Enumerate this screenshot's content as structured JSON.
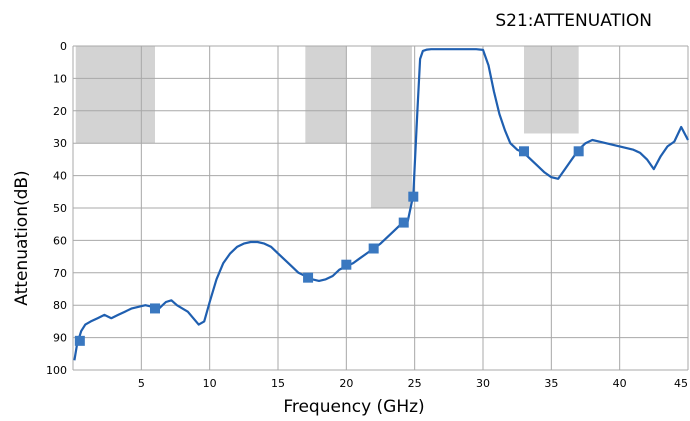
{
  "chart_data": {
    "type": "line",
    "title": "S21:ATTENUATION",
    "xlabel": "Frequency (GHz)",
    "ylabel": "Attenuation(dB)",
    "xlim": [
      0,
      45
    ],
    "ylim": [
      0,
      100
    ],
    "y_reversed": true,
    "grid": true,
    "x_ticks": [
      5,
      10,
      15,
      20,
      25,
      30,
      35,
      40,
      45
    ],
    "x_tick_labels": [
      "5",
      "10",
      "15",
      "20",
      "25",
      "30",
      "35",
      "40",
      "45"
    ],
    "y_ticks": [
      0,
      10,
      20,
      30,
      40,
      50,
      60,
      70,
      80,
      90,
      100
    ],
    "y_tick_labels": [
      "0",
      "10",
      "20",
      "30",
      "40",
      "50",
      "60",
      "70",
      "80",
      "90",
      "100"
    ],
    "colors": {
      "line": "#1f5fb0",
      "mask": "#d3d3d3",
      "grid": "#a8a8a8",
      "marker": "#3a78c0"
    },
    "mask_regions": [
      {
        "x": [
          0.2,
          6
        ],
        "y": [
          0,
          30
        ]
      },
      {
        "x": [
          17,
          20
        ],
        "y": [
          0,
          30
        ]
      },
      {
        "x": [
          21.8,
          24.8
        ],
        "y": [
          0,
          50
        ]
      },
      {
        "x": [
          33,
          37
        ],
        "y": [
          0,
          27
        ]
      }
    ],
    "series": [
      {
        "x": [
          0.1,
          0.3,
          0.6,
          0.9,
          1.3,
          1.8,
          2.3,
          2.8,
          3.3,
          3.8,
          4.3,
          4.8,
          5.3,
          5.8,
          6.3,
          6.8,
          7.2,
          7.6,
          8.0,
          8.4,
          8.8,
          9.2,
          9.6,
          10.0,
          10.5,
          11.0,
          11.5,
          12.0,
          12.5,
          13.0,
          13.5,
          14.0,
          14.5,
          15.0,
          15.5,
          16.0,
          16.5,
          17.0,
          17.5,
          18.0,
          18.5,
          19.0,
          19.5,
          20.0,
          20.5,
          21.0,
          21.5,
          22.0,
          22.5,
          23.0,
          23.5,
          24.0,
          24.5,
          24.9,
          25.2,
          25.4,
          25.6,
          25.9,
          26.2,
          26.6,
          27.0,
          27.5,
          28.0,
          28.5,
          29.0,
          29.5,
          30.0,
          30.4,
          30.8,
          31.2,
          31.6,
          32.0,
          32.5,
          33.0,
          33.5,
          34.0,
          34.5,
          35.0,
          35.5,
          36.0,
          36.5,
          37.0,
          37.5,
          38.0,
          38.5,
          39.0,
          39.5,
          40.0,
          40.5,
          41.0,
          41.5,
          42.0,
          42.5,
          43.0,
          43.5,
          44.0,
          44.5,
          45.0
        ],
        "y": [
          97,
          92,
          88,
          86,
          85,
          84,
          83,
          84,
          83,
          82,
          81,
          80.5,
          80,
          80.5,
          81,
          79,
          78.5,
          80,
          81,
          82,
          84,
          86,
          85,
          79,
          72,
          67,
          64,
          62,
          61,
          60.5,
          60.5,
          61,
          62,
          64,
          66,
          68,
          70,
          71,
          72,
          72.5,
          72,
          71,
          69,
          68,
          67,
          65.5,
          64,
          62.5,
          61,
          59,
          57,
          55,
          54,
          46,
          20,
          4,
          1.5,
          1.1,
          1,
          1,
          1,
          1,
          1,
          1,
          1,
          1,
          1.2,
          6,
          14,
          21,
          26,
          30,
          32,
          33,
          35,
          37,
          39,
          40.5,
          41,
          38,
          35,
          32,
          30,
          29,
          29.5,
          30,
          30.5,
          31,
          31.5,
          32,
          33,
          35,
          38,
          34,
          31,
          29.5,
          25,
          29
        ]
      }
    ],
    "markers": [
      {
        "x": 0.5,
        "y": 91
      },
      {
        "x": 6.0,
        "y": 81
      },
      {
        "x": 17.2,
        "y": 71.5
      },
      {
        "x": 20.0,
        "y": 67.5
      },
      {
        "x": 22.0,
        "y": 62.5
      },
      {
        "x": 24.2,
        "y": 54.5
      },
      {
        "x": 24.9,
        "y": 46.5
      },
      {
        "x": 33.0,
        "y": 32.5
      },
      {
        "x": 37.0,
        "y": 32.5
      }
    ]
  }
}
